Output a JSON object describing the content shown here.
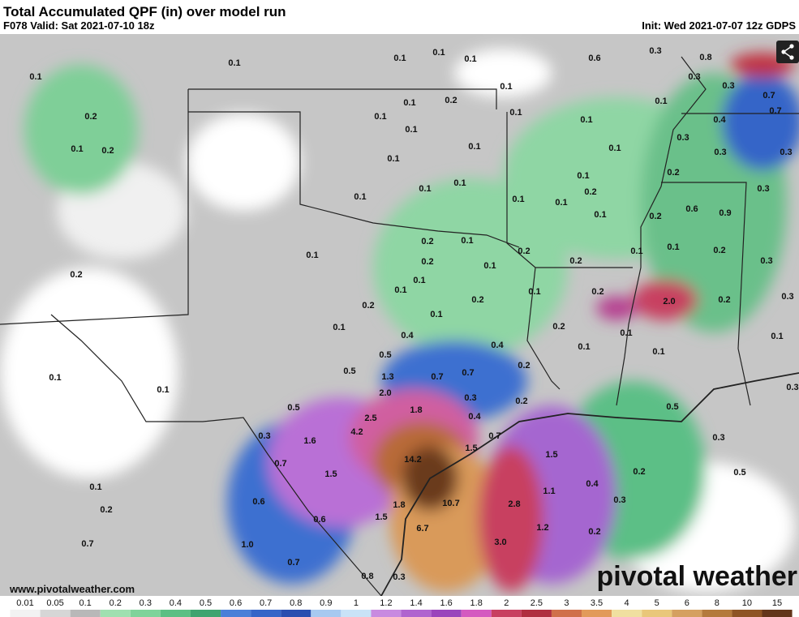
{
  "header": {
    "title": "Total Accumulated QPF (in) over model run",
    "valid": "F078 Valid: Sat 2021-07-10 18z",
    "init": "Init: Wed 2021-07-07 12z GDPS"
  },
  "map_labels": [
    "0.1",
    "0.1",
    "0.1",
    "0.1",
    "0.1",
    "0.6",
    "0.3",
    "0.8",
    "0.2",
    "0.1",
    "0.2",
    "0.1",
    "0.3",
    "0.3",
    "0.7",
    "0.1",
    "0.2",
    "0.1",
    "0.7",
    "0.1",
    "0.1",
    "0.1",
    "0.4",
    "0.1",
    "0.3",
    "0.1",
    "0.1",
    "0.3",
    "0.3",
    "0.1",
    "0.2",
    "0.1",
    "0.1",
    "0.1",
    "0.2",
    "0.3",
    "0.1",
    "0.1",
    "0.1",
    "0.6",
    "0.9",
    "0.1",
    "0.2",
    "0.2",
    "0.1",
    "0.1",
    "0.2",
    "0.1",
    "0.1",
    "0.2",
    "0.2",
    "0.1",
    "0.2",
    "0.3",
    "0.2",
    "0.1",
    "0.1",
    "0.1",
    "0.2",
    "0.2",
    "2.0",
    "0.2",
    "0.3",
    "0.2",
    "0.1",
    "0.2",
    "0.1",
    "0.1",
    "0.4",
    "0.1",
    "0.4",
    "0.1",
    "0.1",
    "0.5",
    "0.2",
    "0.5",
    "1.3",
    "0.7",
    "0.7",
    "0.1",
    "0.1",
    "2.0",
    "0.3",
    "0.2",
    "1.8",
    "0.5",
    "0.5",
    "0.3",
    "0.4",
    "2.5",
    "4.2",
    "0.7",
    "0.3",
    "1.6",
    "0.3",
    "1.5",
    "1.5",
    "14.2",
    "0.7",
    "1.5",
    "0.2",
    "0.5",
    "0.4",
    "0.1",
    "1.1",
    "0.6",
    "0.3",
    "0.2",
    "1.8",
    "10.7",
    "2.8",
    "0.6",
    "1.5",
    "1.2",
    "6.7",
    "0.2",
    "1.0",
    "0.7",
    "3.0",
    "0.7",
    "0.8",
    "0.3"
  ],
  "colorbar": {
    "labels": [
      "0.01",
      "0.05",
      "0.1",
      "0.2",
      "0.3",
      "0.4",
      "0.5",
      "0.6",
      "0.7",
      "0.8",
      "0.9",
      "1",
      "1.2",
      "1.4",
      "1.6",
      "1.8",
      "2",
      "2.5",
      "3",
      "3.5",
      "4",
      "5",
      "6",
      "8",
      "10",
      "15"
    ],
    "colors": [
      "#f2f2f2",
      "#d6d6d6",
      "#b8b8b8",
      "#9fe0b0",
      "#7fd39a",
      "#5cbf84",
      "#3fa470",
      "#4a7fd8",
      "#3565c8",
      "#2a4eb0",
      "#a7c9f0",
      "#c9e3f7",
      "#c88ae0",
      "#b064cf",
      "#9a45bc",
      "#d45ac0",
      "#c84060",
      "#b02f40",
      "#d0704a",
      "#e29a5a",
      "#f0e0a0",
      "#e9c77a",
      "#d5a060",
      "#b47a3c",
      "#8e5424",
      "#63351a"
    ]
  },
  "footer": {
    "url": "www.pivotalweather.com",
    "logo": "pivotal weather"
  }
}
